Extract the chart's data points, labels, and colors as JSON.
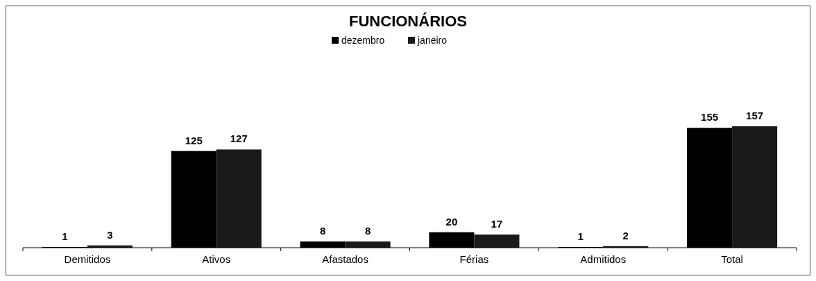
{
  "chart_data": {
    "type": "bar",
    "title": "FUNCIONÁRIOS",
    "categories": [
      "Demitidos",
      "Ativos",
      "Afastados",
      "Férias",
      "Admitidos",
      "Total"
    ],
    "series": [
      {
        "name": "dezembro",
        "color": "#000000",
        "values": [
          1,
          125,
          8,
          20,
          1,
          155
        ]
      },
      {
        "name": "janeiro",
        "color": "#1a1a1a",
        "values": [
          3,
          127,
          8,
          17,
          2,
          157
        ]
      }
    ],
    "data_labels": true,
    "legend": "top"
  }
}
